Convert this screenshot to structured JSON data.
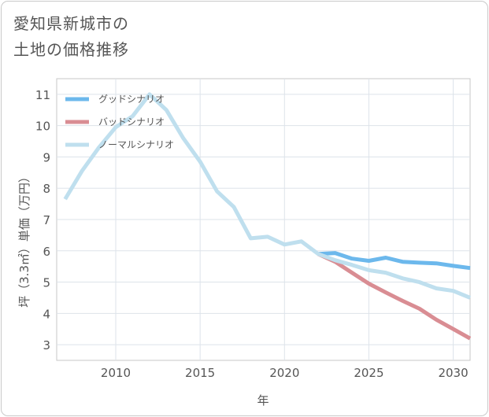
{
  "chart_data": {
    "type": "line",
    "title_lines": [
      "愛知県新城市の",
      "土地の価格推移"
    ],
    "xlabel": "年",
    "ylabel": "坪（3.3㎡）単価（万円）",
    "xlim": [
      2006.5,
      2031
    ],
    "ylim": [
      2.5,
      11.5
    ],
    "x_ticks": [
      2010,
      2015,
      2020,
      2025,
      2030
    ],
    "y_ticks": [
      3,
      4,
      5,
      6,
      7,
      8,
      9,
      10,
      11
    ],
    "series": [
      {
        "name": "グッドシナリオ",
        "color": "#6cb8ec",
        "x": [
          2022,
          2023,
          2024,
          2025,
          2026,
          2027,
          2028,
          2029,
          2030,
          2031
        ],
        "y": [
          5.9,
          5.93,
          5.75,
          5.68,
          5.78,
          5.65,
          5.62,
          5.6,
          5.52,
          5.45
        ]
      },
      {
        "name": "バッドシナリオ",
        "color": "#d98d93",
        "x": [
          2022,
          2023,
          2024,
          2025,
          2026,
          2027,
          2028,
          2029,
          2030,
          2031
        ],
        "y": [
          5.9,
          5.65,
          5.3,
          4.95,
          4.67,
          4.4,
          4.15,
          3.8,
          3.5,
          3.2
        ]
      },
      {
        "name": "ノーマルシナリオ",
        "color": "#bfdfee",
        "x": [
          2007,
          2008,
          2009,
          2010,
          2011,
          2012,
          2013,
          2014,
          2015,
          2016,
          2017,
          2018,
          2019,
          2020,
          2021,
          2022,
          2023,
          2024,
          2025,
          2026,
          2027,
          2028,
          2029,
          2030,
          2031
        ],
        "y": [
          7.65,
          8.55,
          9.3,
          9.95,
          10.3,
          11.0,
          10.5,
          9.6,
          8.85,
          7.9,
          7.4,
          6.4,
          6.45,
          6.2,
          6.3,
          5.9,
          5.7,
          5.55,
          5.38,
          5.3,
          5.12,
          5.0,
          4.8,
          4.72,
          4.5
        ]
      }
    ]
  }
}
